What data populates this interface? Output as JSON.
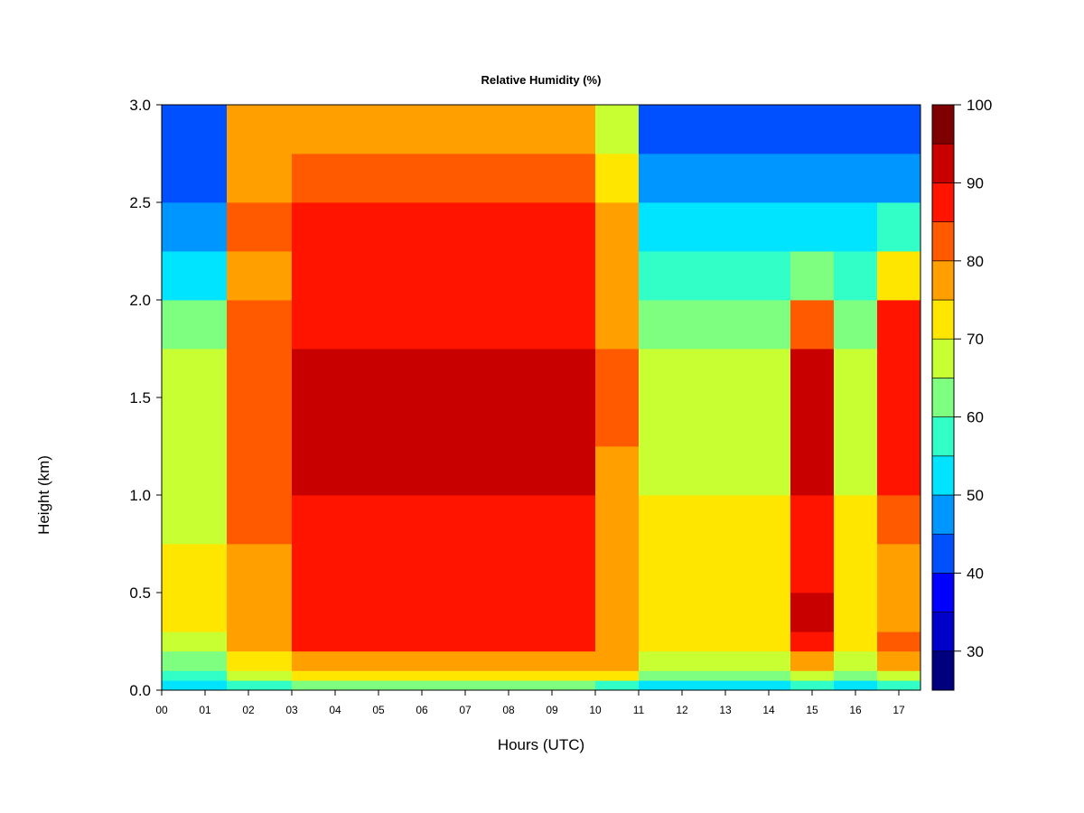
{
  "chart_data": {
    "type": "heatmap",
    "title": "Relative Humidity (%)",
    "xlabel": "Hours (UTC)",
    "ylabel": "Height (km)",
    "xlim": [
      0,
      17.5
    ],
    "ylim": [
      0,
      3.0
    ],
    "x_ticks": [
      "00",
      "01",
      "02",
      "03",
      "04",
      "05",
      "06",
      "07",
      "08",
      "09",
      "10",
      "11",
      "12",
      "13",
      "14",
      "15",
      "16",
      "17"
    ],
    "y_ticks": [
      "0.0",
      "0.5",
      "1.0",
      "1.5",
      "2.0",
      "2.5",
      "3.0"
    ],
    "colorbar": {
      "range": [
        25,
        100
      ],
      "step": 5,
      "tick_labels": [
        "30",
        "40",
        "50",
        "60",
        "70",
        "80",
        "90",
        "100"
      ],
      "levels": [
        {
          "from": 25,
          "to": 30,
          "color": "#00007F"
        },
        {
          "from": 30,
          "to": 35,
          "color": "#0000C8"
        },
        {
          "from": 35,
          "to": 40,
          "color": "#0000FF"
        },
        {
          "from": 40,
          "to": 45,
          "color": "#0050FF"
        },
        {
          "from": 45,
          "to": 50,
          "color": "#0096FF"
        },
        {
          "from": 50,
          "to": 55,
          "color": "#00E4FF"
        },
        {
          "from": 55,
          "to": 60,
          "color": "#32FFC8"
        },
        {
          "from": 60,
          "to": 65,
          "color": "#7FFF7F"
        },
        {
          "from": 65,
          "to": 70,
          "color": "#C8FF32"
        },
        {
          "from": 70,
          "to": 75,
          "color": "#FFE600"
        },
        {
          "from": 75,
          "to": 80,
          "color": "#FFA000"
        },
        {
          "from": 80,
          "to": 85,
          "color": "#FF5A00"
        },
        {
          "from": 85,
          "to": 90,
          "color": "#FF1400"
        },
        {
          "from": 90,
          "to": 95,
          "color": "#C80000"
        },
        {
          "from": 95,
          "to": 100,
          "color": "#7F0000"
        }
      ]
    },
    "field_heights_km": [
      0.0,
      0.05,
      0.1,
      0.2,
      0.3,
      0.5,
      0.75,
      1.0,
      1.25,
      1.5,
      1.75,
      2.0,
      2.25,
      2.5,
      2.75,
      3.0
    ],
    "field_hours_utc": [
      0.0,
      0.5,
      1.0,
      1.5,
      2.0,
      2.5,
      3.0,
      3.5,
      4.0,
      4.5,
      5.0,
      5.5,
      6.0,
      6.5,
      7.0,
      7.5,
      8.0,
      8.5,
      9.0,
      9.5,
      10.0,
      10.5,
      11.0,
      11.5,
      12.0,
      12.5,
      13.0,
      13.5,
      14.0,
      14.5,
      15.0,
      15.5,
      16.0,
      16.5,
      17.0,
      17.5
    ],
    "field_values": [
      [
        55,
        60,
        65,
        70,
        72,
        72,
        70,
        70,
        70,
        68,
        62,
        55,
        50,
        45,
        42,
        40
      ],
      [
        55,
        60,
        65,
        70,
        72,
        72,
        70,
        70,
        70,
        68,
        62,
        55,
        50,
        45,
        42,
        40
      ],
      [
        55,
        60,
        65,
        70,
        72,
        72,
        70,
        70,
        70,
        68,
        62,
        55,
        50,
        45,
        42,
        40
      ],
      [
        60,
        68,
        72,
        76,
        78,
        80,
        82,
        83,
        84,
        84,
        82,
        80,
        82,
        80,
        76,
        72
      ],
      [
        60,
        68,
        72,
        76,
        78,
        80,
        82,
        83,
        84,
        84,
        82,
        80,
        82,
        80,
        76,
        72
      ],
      [
        60,
        68,
        72,
        76,
        78,
        80,
        82,
        83,
        84,
        84,
        82,
        80,
        82,
        80,
        76,
        72
      ],
      [
        65,
        75,
        80,
        88,
        90,
        90,
        90,
        92,
        95,
        95,
        90,
        88,
        88,
        85,
        80,
        78
      ],
      [
        65,
        75,
        80,
        88,
        90,
        90,
        90,
        92,
        95,
        95,
        90,
        88,
        88,
        85,
        80,
        78
      ],
      [
        65,
        75,
        80,
        88,
        90,
        90,
        90,
        92,
        95,
        95,
        90,
        88,
        88,
        85,
        80,
        78
      ],
      [
        65,
        75,
        80,
        88,
        90,
        90,
        90,
        92,
        95,
        95,
        90,
        88,
        88,
        85,
        80,
        78
      ],
      [
        65,
        75,
        80,
        88,
        90,
        90,
        90,
        92,
        95,
        95,
        90,
        88,
        88,
        85,
        80,
        78
      ],
      [
        65,
        75,
        80,
        88,
        90,
        90,
        90,
        92,
        95,
        95,
        90,
        88,
        88,
        85,
        80,
        78
      ],
      [
        65,
        75,
        80,
        88,
        90,
        90,
        90,
        92,
        95,
        95,
        90,
        88,
        88,
        85,
        80,
        78
      ],
      [
        65,
        75,
        80,
        88,
        90,
        90,
        90,
        92,
        95,
        95,
        90,
        88,
        88,
        85,
        80,
        78
      ],
      [
        65,
        75,
        80,
        88,
        90,
        90,
        90,
        92,
        95,
        95,
        90,
        88,
        88,
        85,
        80,
        78
      ],
      [
        65,
        75,
        80,
        88,
        90,
        90,
        90,
        92,
        95,
        95,
        90,
        88,
        88,
        85,
        80,
        78
      ],
      [
        65,
        75,
        80,
        88,
        90,
        90,
        90,
        92,
        95,
        95,
        90,
        88,
        88,
        85,
        80,
        78
      ],
      [
        65,
        75,
        80,
        88,
        90,
        90,
        90,
        92,
        95,
        95,
        90,
        88,
        88,
        85,
        80,
        78
      ],
      [
        65,
        75,
        80,
        88,
        90,
        90,
        90,
        92,
        95,
        95,
        90,
        88,
        88,
        85,
        80,
        78
      ],
      [
        65,
        75,
        80,
        88,
        90,
        90,
        90,
        92,
        95,
        95,
        90,
        88,
        88,
        85,
        80,
        78
      ],
      [
        60,
        72,
        76,
        80,
        80,
        78,
        76,
        80,
        82,
        82,
        80,
        78,
        80,
        75,
        70,
        65
      ],
      [
        60,
        72,
        76,
        80,
        80,
        78,
        76,
        80,
        82,
        82,
        80,
        78,
        80,
        75,
        70,
        65
      ],
      [
        55,
        62,
        68,
        72,
        72,
        72,
        72,
        70,
        68,
        66,
        62,
        56,
        52,
        48,
        45,
        42
      ],
      [
        55,
        62,
        68,
        72,
        72,
        72,
        72,
        70,
        68,
        66,
        62,
        56,
        52,
        48,
        45,
        42
      ],
      [
        55,
        62,
        68,
        72,
        72,
        72,
        72,
        70,
        68,
        66,
        62,
        56,
        52,
        48,
        45,
        42
      ],
      [
        55,
        62,
        68,
        72,
        72,
        72,
        72,
        70,
        68,
        66,
        62,
        56,
        52,
        48,
        45,
        42
      ],
      [
        55,
        62,
        68,
        72,
        72,
        72,
        72,
        70,
        68,
        66,
        62,
        56,
        52,
        48,
        45,
        42
      ],
      [
        55,
        62,
        68,
        72,
        72,
        72,
        72,
        70,
        68,
        66,
        62,
        56,
        52,
        48,
        45,
        42
      ],
      [
        55,
        62,
        68,
        72,
        72,
        72,
        72,
        70,
        68,
        66,
        62,
        56,
        52,
        48,
        45,
        42
      ],
      [
        58,
        70,
        80,
        90,
        92,
        88,
        86,
        92,
        95,
        95,
        85,
        65,
        55,
        48,
        44,
        40
      ],
      [
        58,
        70,
        80,
        90,
        92,
        88,
        86,
        92,
        95,
        95,
        85,
        65,
        55,
        48,
        44,
        40
      ],
      [
        55,
        62,
        68,
        72,
        72,
        72,
        72,
        70,
        68,
        66,
        62,
        56,
        52,
        48,
        45,
        42
      ],
      [
        55,
        62,
        68,
        72,
        72,
        72,
        72,
        70,
        68,
        66,
        62,
        56,
        52,
        48,
        45,
        42
      ],
      [
        58,
        70,
        78,
        82,
        80,
        80,
        82,
        86,
        90,
        90,
        86,
        72,
        60,
        50,
        44,
        40
      ],
      [
        58,
        70,
        78,
        82,
        80,
        80,
        82,
        86,
        90,
        90,
        86,
        72,
        60,
        50,
        44,
        40
      ],
      [
        55,
        62,
        68,
        72,
        72,
        72,
        72,
        70,
        68,
        66,
        62,
        56,
        52,
        48,
        45,
        42
      ]
    ]
  }
}
